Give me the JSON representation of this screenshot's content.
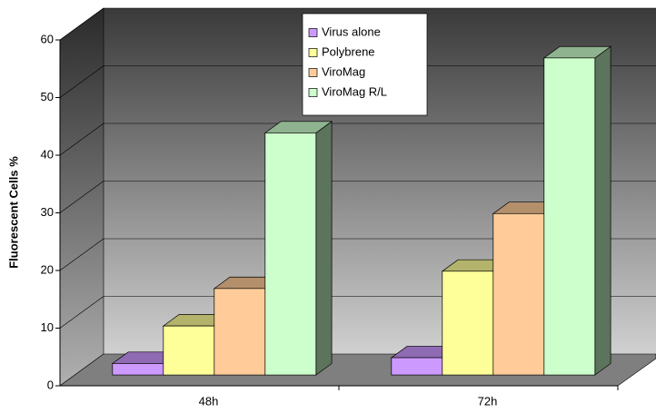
{
  "chart_data": {
    "type": "bar",
    "y_axis_label": "Fluorescent Cells %",
    "categories": [
      "48h",
      "72h"
    ],
    "series": [
      {
        "name": "Virus alone",
        "color": "#cc99ff",
        "values": [
          2,
          3
        ]
      },
      {
        "name": "Polybrene",
        "color": "#ffff99",
        "values": [
          8.5,
          18
        ]
      },
      {
        "name": "ViroMag",
        "color": "#ffcc99",
        "values": [
          15,
          28
        ]
      },
      {
        "name": "ViroMag R/L",
        "color": "#ccffcc",
        "values": [
          42,
          55
        ]
      }
    ],
    "ylim": [
      0,
      60
    ],
    "yticks": [
      0,
      10,
      20,
      30,
      40,
      50,
      60
    ],
    "grid": true,
    "legend": "top"
  }
}
